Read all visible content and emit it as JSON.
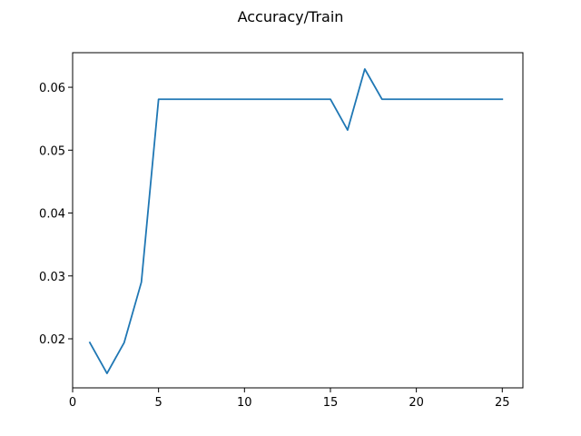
{
  "chart_data": {
    "type": "line",
    "title": "Accuracy/Train",
    "xlabel": "",
    "ylabel": "",
    "xlim": [
      0.0,
      26.2
    ],
    "ylim": [
      0.0122,
      0.0655
    ],
    "xticks": [
      0,
      5,
      10,
      15,
      20,
      25
    ],
    "yticks": [
      0.02,
      0.03,
      0.04,
      0.05,
      0.06
    ],
    "xtick_labels": [
      "0",
      "5",
      "10",
      "15",
      "20",
      "25"
    ],
    "ytick_labels": [
      "0.02",
      "0.03",
      "0.04",
      "0.05",
      "0.06"
    ],
    "grid": false,
    "legend": "none",
    "series": [
      {
        "color": "#1f77b4",
        "x": [
          1,
          2,
          3,
          4,
          5,
          6,
          7,
          8,
          9,
          10,
          11,
          12,
          13,
          14,
          15,
          16,
          17,
          18,
          19,
          20,
          21,
          22,
          23,
          24,
          25
        ],
        "y": [
          0.0194,
          0.0145,
          0.0194,
          0.029,
          0.0581,
          0.0581,
          0.0581,
          0.0581,
          0.0581,
          0.0581,
          0.0581,
          0.0581,
          0.0581,
          0.0581,
          0.0581,
          0.0532,
          0.0629,
          0.0581,
          0.0581,
          0.0581,
          0.0581,
          0.0581,
          0.0581,
          0.0581,
          0.0581
        ]
      }
    ]
  }
}
